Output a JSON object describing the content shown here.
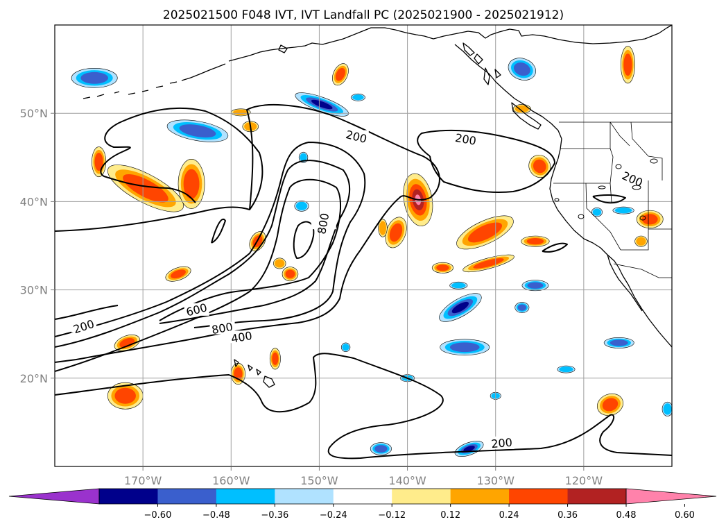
{
  "title": "2025021500 F048 IVT, IVT Landfall PC (2025021900 - 2025021912)",
  "map": {
    "lon_range": [
      -180,
      -110
    ],
    "lat_range": [
      10,
      60
    ],
    "x_ticks": [
      {
        "lon": -170,
        "label": "170°W"
      },
      {
        "lon": -160,
        "label": "160°W"
      },
      {
        "lon": -150,
        "label": "150°W"
      },
      {
        "lon": -140,
        "label": "140°W"
      },
      {
        "lon": -130,
        "label": "130°W"
      },
      {
        "lon": -120,
        "label": "120°W"
      }
    ],
    "y_ticks": [
      {
        "lat": 50,
        "label": "50°N"
      },
      {
        "lat": 40,
        "label": "40°N"
      },
      {
        "lat": 30,
        "label": "30°N"
      },
      {
        "lat": 20,
        "label": "20°N"
      }
    ],
    "grid": true,
    "ivt_contour_levels": [
      200,
      400,
      600,
      800
    ],
    "contour_labels": [
      {
        "text": "200",
        "lon": -145.8,
        "lat": 47.3
      },
      {
        "text": "200",
        "lon": -133.4,
        "lat": 47.0
      },
      {
        "text": "200",
        "lon": -114.5,
        "lat": 42.5
      },
      {
        "text": "800",
        "lon": -149.5,
        "lat": 37.5
      },
      {
        "text": "600",
        "lon": -163.9,
        "lat": 27.7
      },
      {
        "text": "800",
        "lon": -161.0,
        "lat": 25.6
      },
      {
        "text": "400",
        "lon": -158.8,
        "lat": 24.6
      },
      {
        "text": "200",
        "lon": -176.7,
        "lat": 25.8
      },
      {
        "text": "200",
        "lon": -129.3,
        "lat": 12.6
      }
    ]
  },
  "colorbar": {
    "extend": "both",
    "colors": [
      "#9a32cd",
      "#00008b",
      "#3a5fcd",
      "#00bfff",
      "#b0e2ff",
      "#ffffff",
      "#ffec8b",
      "#ffa500",
      "#ff4500",
      "#b22222",
      "#ff82ab"
    ],
    "tick_labels": [
      "−0.60",
      "−0.48",
      "−0.36",
      "−0.24",
      "−0.12",
      "0.12",
      "0.24",
      "0.36",
      "0.48",
      "0.60"
    ]
  },
  "blobs": [
    {
      "lon": -169.7,
      "lat": 41.5,
      "rx": 4.8,
      "ry": 1.6,
      "rot": 28,
      "level": 0.45
    },
    {
      "lon": -164.5,
      "lat": 42.0,
      "rx": 1.5,
      "ry": 2.8,
      "rot": 0,
      "level": 0.42
    },
    {
      "lon": -175.0,
      "lat": 44.5,
      "rx": 0.8,
      "ry": 1.7,
      "rot": 0,
      "level": 0.36
    },
    {
      "lon": -138.8,
      "lat": 40.2,
      "rx": 1.6,
      "ry": 3.0,
      "rot": -10,
      "level": 0.62
    },
    {
      "lon": -141.3,
      "lat": 36.5,
      "rx": 1.1,
      "ry": 1.8,
      "rot": 20,
      "level": 0.38
    },
    {
      "lon": -131.2,
      "lat": 36.5,
      "rx": 3.5,
      "ry": 1.3,
      "rot": -25,
      "level": 0.45
    },
    {
      "lon": -130.8,
      "lat": 33.0,
      "rx": 3.0,
      "ry": 0.6,
      "rot": -15,
      "level": 0.36
    },
    {
      "lon": -136.0,
      "lat": 32.5,
      "rx": 1.2,
      "ry": 0.6,
      "rot": 0,
      "level": 0.36
    },
    {
      "lon": -125.5,
      "lat": 35.5,
      "rx": 1.6,
      "ry": 0.6,
      "rot": 0,
      "level": 0.45
    },
    {
      "lon": -125.0,
      "lat": 44.0,
      "rx": 1.2,
      "ry": 1.3,
      "rot": -30,
      "level": 0.45
    },
    {
      "lon": -157.0,
      "lat": 35.5,
      "rx": 0.8,
      "ry": 1.2,
      "rot": 30,
      "level": 0.36
    },
    {
      "lon": -166.0,
      "lat": 31.8,
      "rx": 1.5,
      "ry": 0.7,
      "rot": -20,
      "level": 0.36
    },
    {
      "lon": -153.3,
      "lat": 31.8,
      "rx": 0.9,
      "ry": 0.8,
      "rot": 0,
      "level": 0.36
    },
    {
      "lon": -171.8,
      "lat": 24.0,
      "rx": 1.5,
      "ry": 0.8,
      "rot": -20,
      "level": 0.36
    },
    {
      "lon": -155.0,
      "lat": 22.2,
      "rx": 0.6,
      "ry": 1.2,
      "rot": 0,
      "level": 0.36
    },
    {
      "lon": -159.2,
      "lat": 20.5,
      "rx": 0.8,
      "ry": 1.2,
      "rot": 0,
      "level": 0.36
    },
    {
      "lon": -172.0,
      "lat": 18.0,
      "rx": 2.0,
      "ry": 1.5,
      "rot": 0,
      "level": 0.36
    },
    {
      "lon": -147.6,
      "lat": 54.4,
      "rx": 0.8,
      "ry": 1.3,
      "rot": 25,
      "level": 0.36
    },
    {
      "lon": -115.0,
      "lat": 55.5,
      "rx": 0.8,
      "ry": 2.1,
      "rot": 0,
      "level": 0.36
    },
    {
      "lon": -117.0,
      "lat": 17.0,
      "rx": 1.5,
      "ry": 1.2,
      "rot": -20,
      "level": 0.45
    },
    {
      "lon": -157.8,
      "lat": 48.5,
      "rx": 0.9,
      "ry": 0.6,
      "rot": 0,
      "level": 0.24
    },
    {
      "lon": -158.9,
      "lat": 50.1,
      "rx": 1.1,
      "ry": 0.4,
      "rot": 0,
      "level": 0.24
    },
    {
      "lon": -142.8,
      "lat": 37.0,
      "rx": 0.5,
      "ry": 1.0,
      "rot": 0,
      "level": 0.3
    },
    {
      "lon": -127.0,
      "lat": 50.5,
      "rx": 1.0,
      "ry": 0.5,
      "rot": 0,
      "level": 0.3
    },
    {
      "lon": -112.5,
      "lat": 38.0,
      "rx": 1.5,
      "ry": 1.0,
      "rot": 0,
      "level": 0.36
    },
    {
      "lon": -113.5,
      "lat": 35.5,
      "rx": 0.7,
      "ry": 0.6,
      "rot": 0,
      "level": 0.3
    },
    {
      "lon": -154.5,
      "lat": 33.0,
      "rx": 0.7,
      "ry": 0.6,
      "rot": 0,
      "level": 0.3
    },
    {
      "lon": -163.8,
      "lat": 48.0,
      "rx": 3.5,
      "ry": 1.1,
      "rot": 10,
      "level": -0.45
    },
    {
      "lon": -175.5,
      "lat": 54.0,
      "rx": 2.6,
      "ry": 1.1,
      "rot": 0,
      "level": -0.45
    },
    {
      "lon": -149.7,
      "lat": 51.0,
      "rx": 3.2,
      "ry": 0.8,
      "rot": 20,
      "level": -0.55
    },
    {
      "lon": -134.0,
      "lat": 28.0,
      "rx": 2.7,
      "ry": 1.0,
      "rot": -30,
      "level": -0.55
    },
    {
      "lon": -133.5,
      "lat": 23.5,
      "rx": 2.8,
      "ry": 0.9,
      "rot": 0,
      "level": -0.45
    },
    {
      "lon": -133.0,
      "lat": 12.0,
      "rx": 1.7,
      "ry": 0.7,
      "rot": -20,
      "level": -0.55
    },
    {
      "lon": -143.0,
      "lat": 12.0,
      "rx": 1.2,
      "ry": 0.7,
      "rot": 0,
      "level": -0.45
    },
    {
      "lon": -127.0,
      "lat": 55.0,
      "rx": 1.6,
      "ry": 1.2,
      "rot": 20,
      "level": -0.4
    },
    {
      "lon": -116.0,
      "lat": 24.0,
      "rx": 1.7,
      "ry": 0.6,
      "rot": 0,
      "level": -0.4
    },
    {
      "lon": -125.5,
      "lat": 30.5,
      "rx": 1.5,
      "ry": 0.6,
      "rot": 0,
      "level": -0.4
    },
    {
      "lon": -127.0,
      "lat": 28.0,
      "rx": 0.8,
      "ry": 0.6,
      "rot": 0,
      "level": -0.38
    },
    {
      "lon": -134.2,
      "lat": 30.5,
      "rx": 1.0,
      "ry": 0.4,
      "rot": 0,
      "level": -0.3
    },
    {
      "lon": -145.6,
      "lat": 51.8,
      "rx": 0.8,
      "ry": 0.4,
      "rot": 0,
      "level": -0.3
    },
    {
      "lon": -151.8,
      "lat": 45.0,
      "rx": 0.5,
      "ry": 0.6,
      "rot": 0,
      "level": -0.3
    },
    {
      "lon": -122.0,
      "lat": 21.0,
      "rx": 1.0,
      "ry": 0.4,
      "rot": 0,
      "level": -0.3
    },
    {
      "lon": -130.0,
      "lat": 18.0,
      "rx": 0.6,
      "ry": 0.4,
      "rot": 0,
      "level": -0.3
    },
    {
      "lon": -115.5,
      "lat": 39.0,
      "rx": 1.2,
      "ry": 0.4,
      "rot": 0,
      "level": -0.3
    },
    {
      "lon": -118.5,
      "lat": 38.8,
      "rx": 0.6,
      "ry": 0.5,
      "rot": 0,
      "level": -0.3
    },
    {
      "lon": -110.5,
      "lat": 16.5,
      "rx": 0.6,
      "ry": 0.8,
      "rot": 0,
      "level": -0.3
    },
    {
      "lon": -152.0,
      "lat": 39.5,
      "rx": 0.8,
      "ry": 0.6,
      "rot": 0,
      "level": -0.3
    },
    {
      "lon": -147.0,
      "lat": 23.5,
      "rx": 0.5,
      "ry": 0.5,
      "rot": 0,
      "level": -0.24
    },
    {
      "lon": -140.0,
      "lat": 20.0,
      "rx": 0.8,
      "ry": 0.4,
      "rot": 0,
      "level": -0.24
    }
  ]
}
